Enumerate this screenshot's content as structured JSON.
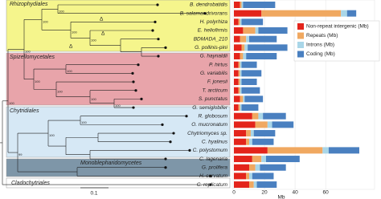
{
  "chart_data": {
    "type": "stacked-barh",
    "categories": [
      "B. dendrobatidis",
      "B. salamandrivorans",
      "H. polyrhiza",
      "E. heliofirmis",
      "BDMADA_210",
      "G. pollinis-pini",
      "G. haynaldii",
      "P. hirtus",
      "G. variabilis",
      "F. jonesii",
      "T. arcticum",
      "S. punctatus",
      "G. semiglobifer",
      "R. globosum",
      "O. mucronatum",
      "Chytriomyces sp.",
      "C. hyalinus",
      "C. polystomum",
      "C. lagenaria",
      "G. prolifera",
      "H. curvatum",
      "C. replicatum"
    ],
    "series": [
      {
        "name": "Non-repeat intergenic (Mb)",
        "color": "#e3241b",
        "values": [
          4,
          18,
          3,
          6,
          4,
          5,
          4,
          3,
          3,
          3,
          3,
          4,
          3,
          12,
          14,
          8,
          8,
          22,
          12,
          10,
          8,
          10
        ]
      },
      {
        "name": "Repeats (Mb)",
        "color": "#f0a860",
        "values": [
          1,
          52,
          1,
          8,
          4,
          2,
          2,
          1,
          1,
          1,
          1,
          2,
          1,
          4,
          8,
          3,
          2,
          36,
          6,
          4,
          2,
          3
        ]
      },
      {
        "name": "Introns (Mb)",
        "color": "#a9d6e8",
        "values": [
          1,
          4,
          1,
          2,
          2,
          2,
          2,
          1,
          1,
          1,
          1,
          1,
          1,
          3,
          3,
          2,
          2,
          4,
          3,
          3,
          2,
          2
        ]
      },
      {
        "name": "Coding (Mb)",
        "color": "#4a80c0",
        "values": [
          21,
          6,
          14,
          19,
          18,
          26,
          20,
          10,
          13,
          10,
          12,
          12,
          11,
          15,
          14,
          14,
          14,
          20,
          22,
          17,
          14,
          13
        ]
      }
    ],
    "x_label": "Mb",
    "xlim": [
      0,
      92
    ],
    "xticks": [
      0,
      20,
      40,
      60
    ],
    "grid": true,
    "legend": "top-right"
  },
  "tree": {
    "clades": [
      "Rhizophydiales",
      "Spizellomycetales",
      "Chytridiales",
      "Monoblepharidomycetes",
      "Cladochytriales"
    ],
    "support": [
      100,
      100,
      100,
      100,
      100,
      100,
      100,
      100,
      100,
      100,
      100,
      99,
      100,
      100
    ],
    "marker": "Δ",
    "scale_label": 0.1
  }
}
